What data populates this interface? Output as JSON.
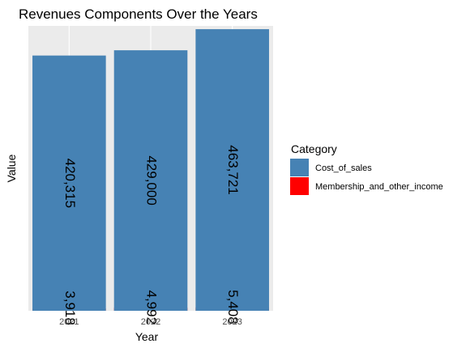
{
  "chart_data": {
    "type": "bar",
    "stacked": true,
    "title": "Revenues Components Over the Years",
    "xlabel": "Year",
    "ylabel": "Value",
    "categories": [
      "2021",
      "2022",
      "2023"
    ],
    "series": [
      {
        "name": "Membership_and_other_income",
        "values": [
          3918,
          4992,
          5408
        ],
        "labels": [
          "3,918",
          "4,992",
          "5,408"
        ],
        "color": "#ff0000"
      },
      {
        "name": "Cost_of_sales",
        "values": [
          420315,
          429000,
          463721
        ],
        "labels": [
          "420,315",
          "429,000",
          "463,721"
        ],
        "color": "#4682b4"
      }
    ],
    "ylim": [
      0,
      469129
    ],
    "y_ticks_shown": false,
    "grid": true,
    "panel_background": "#ebebeb",
    "grid_color": "#ffffff",
    "legend": {
      "title": "Category",
      "position": "right",
      "entries": [
        "Cost_of_sales",
        "Membership_and_other_income"
      ]
    }
  }
}
